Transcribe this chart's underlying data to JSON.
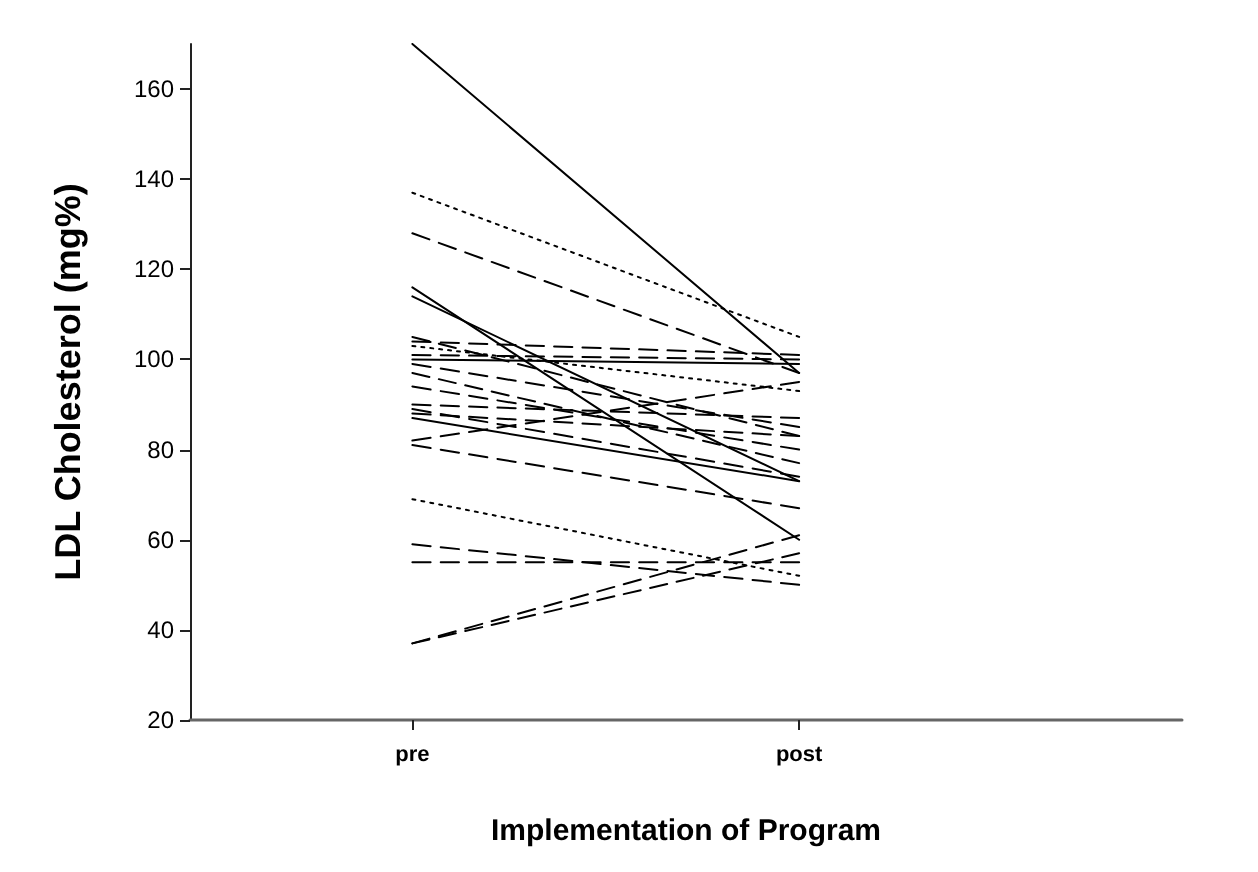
{
  "chart_data": {
    "type": "line",
    "xlabel": "Implementation of Program",
    "ylabel": "LDL Cholesterol (mg%)",
    "categories": [
      "pre",
      "post"
    ],
    "ylim": [
      20,
      170
    ],
    "yticks": [
      20,
      40,
      60,
      80,
      100,
      120,
      140,
      160
    ],
    "grid": false,
    "marker": "none",
    "series": [
      {
        "color": "#000000",
        "line_style": "solid",
        "values": [
          170,
          97
        ]
      },
      {
        "color": "#000000",
        "line_style": "dotted",
        "values": [
          137,
          105
        ]
      },
      {
        "color": "#000000",
        "line_style": "dashed",
        "values": [
          128,
          97
        ]
      },
      {
        "color": "#000000",
        "line_style": "solid",
        "values": [
          116,
          60
        ]
      },
      {
        "color": "#000000",
        "line_style": "solid",
        "values": [
          114,
          73
        ]
      },
      {
        "color": "#000000",
        "line_style": "dashed",
        "values": [
          105,
          83
        ]
      },
      {
        "color": "#000000",
        "line_style": "dashed",
        "values": [
          104,
          101
        ]
      },
      {
        "color": "#000000",
        "line_style": "dotted",
        "values": [
          103,
          93
        ]
      },
      {
        "color": "#000000",
        "line_style": "dashed",
        "values": [
          101,
          100
        ]
      },
      {
        "color": "#000000",
        "line_style": "solid",
        "values": [
          100,
          99
        ]
      },
      {
        "color": "#000000",
        "line_style": "dashed",
        "values": [
          99,
          85
        ]
      },
      {
        "color": "#000000",
        "line_style": "dashed",
        "values": [
          97,
          77
        ]
      },
      {
        "color": "#000000",
        "line_style": "dashed",
        "values": [
          94,
          80
        ]
      },
      {
        "color": "#000000",
        "line_style": "dashed",
        "values": [
          90,
          87
        ]
      },
      {
        "color": "#000000",
        "line_style": "dashed",
        "values": [
          89,
          74
        ]
      },
      {
        "color": "#000000",
        "line_style": "dashed",
        "values": [
          88,
          83
        ]
      },
      {
        "color": "#000000",
        "line_style": "solid",
        "values": [
          87,
          73
        ]
      },
      {
        "color": "#000000",
        "line_style": "dashed",
        "values": [
          82,
          95
        ]
      },
      {
        "color": "#000000",
        "line_style": "dashed",
        "values": [
          81,
          67
        ]
      },
      {
        "color": "#000000",
        "line_style": "dotted",
        "values": [
          69,
          52
        ]
      },
      {
        "color": "#000000",
        "line_style": "dashed",
        "values": [
          59,
          50
        ]
      },
      {
        "color": "#000000",
        "line_style": "dashed",
        "values": [
          55,
          55
        ]
      },
      {
        "color": "#000000",
        "line_style": "dashed",
        "values": [
          37,
          61
        ]
      },
      {
        "color": "#000000",
        "line_style": "dashed",
        "values": [
          37,
          57
        ]
      }
    ]
  }
}
